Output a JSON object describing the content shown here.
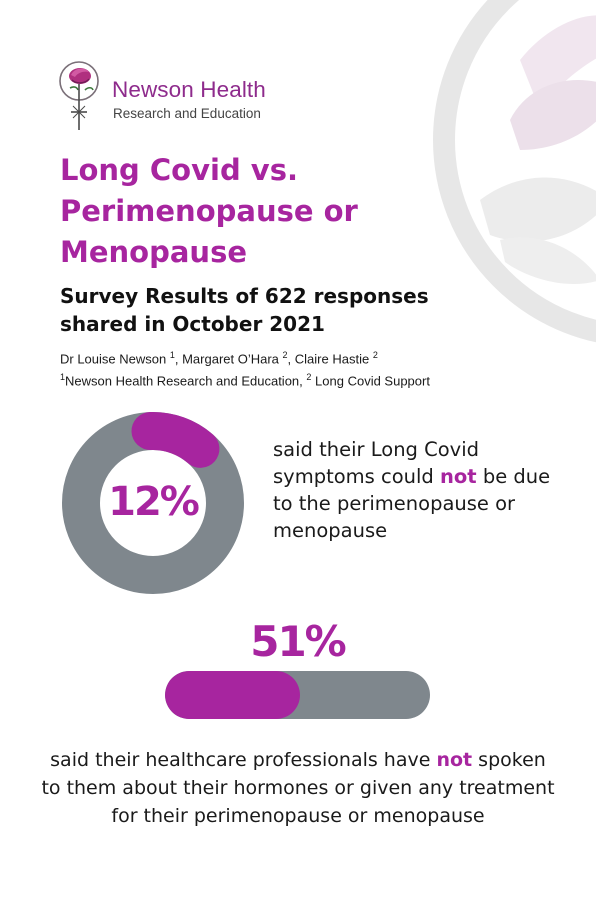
{
  "colors": {
    "accent": "#a7259f",
    "gray": "#7f878d",
    "text": "#1a1a1a"
  },
  "logo": {
    "name": "Newson Health",
    "subtitle": "Research and Education",
    "icon": "rose-icon"
  },
  "title": {
    "line1": "Long Covid vs.",
    "line2": "Perimenopause or",
    "line3": "Menopause"
  },
  "subtitle": {
    "line1": "Survey Results of 622 responses",
    "line2": "shared in October 2021"
  },
  "authors": {
    "author1": "Dr Louise Newson",
    "author1_sup": "1",
    "author2": "Margaret O’Hara",
    "author2_sup": "2",
    "author3": "Claire Hastie",
    "author3_sup": "2",
    "aff1_sup": "1",
    "aff1": "Newson Health Research and Education,",
    "aff2_sup": "2",
    "aff2": "Long Covid Support"
  },
  "stat1": {
    "percent_label": "12%",
    "value": 12,
    "text_before": "said their Long Covid symptoms could ",
    "text_emphasis": "not",
    "text_after": " be due to the perimenopause or menopause"
  },
  "stat2": {
    "percent_label": "51%",
    "value": 51,
    "text_before": "said their healthcare professionals have ",
    "text_emphasis": "not",
    "text_after": " spoken to them about their hormones or given any treatment for their perimenopause or menopause"
  }
}
